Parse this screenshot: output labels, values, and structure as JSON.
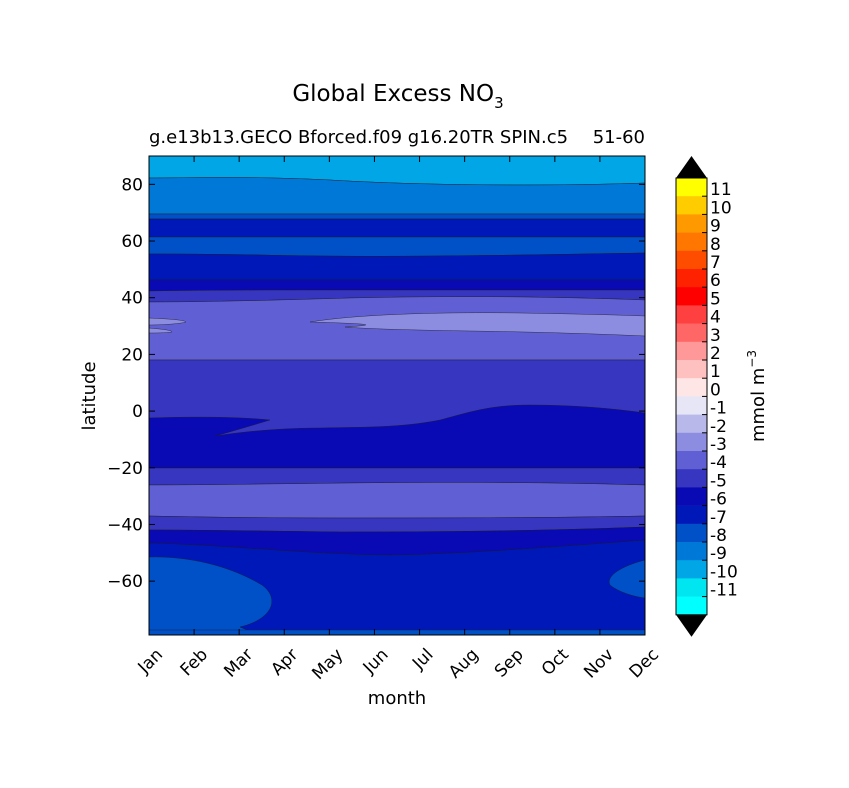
{
  "chart_data": {
    "type": "heatmap",
    "title": "Global Excess NO",
    "title_subscript": "3",
    "subtitle_left": "g.e13b13.GECO Bforced.f09 g16.20TR SPIN.c5",
    "subtitle_right": "51-60",
    "xlabel": "month",
    "ylabel": "latitude",
    "x_ticks": [
      "Jan",
      "Feb",
      "Mar",
      "Apr",
      "May",
      "Jun",
      "Jul",
      "Aug",
      "Sep",
      "Oct",
      "Nov",
      "Dec"
    ],
    "xlim": [
      0,
      11
    ],
    "ylim": [
      -79,
      90
    ],
    "y_ticks": [
      -60,
      -40,
      -20,
      0,
      20,
      40,
      60,
      80
    ],
    "y_tick_labels": [
      "−60",
      "−40",
      "−20",
      "0",
      "20",
      "40",
      "60",
      "80"
    ],
    "colorbar": {
      "label": "mmol m",
      "label_sup": "−3",
      "levels": [
        -11,
        -10,
        -9,
        -8,
        -7,
        -6,
        -5,
        -4,
        -3,
        -2,
        -1,
        0,
        1,
        2,
        3,
        4,
        5,
        6,
        7,
        8,
        9,
        10,
        11
      ],
      "tick_labels": [
        "11",
        "10",
        "9",
        "8",
        "7",
        "6",
        "5",
        "4",
        "3",
        "2",
        "1",
        "0",
        "-1",
        "-2",
        "-3",
        "-4",
        "-5",
        "-6",
        "-7",
        "-8",
        "-9",
        "-10",
        "-11"
      ],
      "colors_top_to_bottom": [
        "#ffff00",
        "#ffcc00",
        "#ff9900",
        "#ff7700",
        "#ff4d00",
        "#ff2200",
        "#ff0000",
        "#ff4040",
        "#ff6666",
        "#ff9999",
        "#ffc0c0",
        "#ffe6e6",
        "#e6e6f6",
        "#b8b8ea",
        "#8c8ce0",
        "#6060d4",
        "#3636c0",
        "#0a0ab4",
        "#0018b8",
        "#0050c8",
        "#0078d8",
        "#00a6e6",
        "#00e6f0",
        "#00ffff"
      ],
      "extend_top_color": "#000000",
      "extend_bottom_color": "#000000"
    },
    "bands": [
      {
        "lat_range": [
          82,
          90
        ],
        "value": -10,
        "color": "#00a6e6"
      },
      {
        "lat_range": [
          70,
          82
        ],
        "value": -9,
        "color": "#0078d8"
      },
      {
        "lat_range": [
          68,
          70
        ],
        "value": -8,
        "color": "#0050c8"
      },
      {
        "lat_range": [
          62,
          68
        ],
        "value": -7,
        "color": "#0018b8"
      },
      {
        "lat_range": [
          55,
          62
        ],
        "value": -8,
        "color": "#0050c8"
      },
      {
        "lat_range": [
          46,
          55
        ],
        "value": -7,
        "color": "#0018b8"
      },
      {
        "lat_range": [
          42,
          46
        ],
        "value": -6,
        "color": "#0a0ab4"
      },
      {
        "lat_range": [
          38,
          42
        ],
        "value": -5,
        "color": "#3636c0"
      },
      {
        "lat_range": [
          19,
          38
        ],
        "value": -4,
        "color": "#6060d4"
      },
      {
        "lat_range": [
          24,
          33
        ],
        "value": -3,
        "color": "#8c8ce0"
      },
      {
        "lat_range": [
          -20,
          19
        ],
        "value": -5,
        "color": "#3636c0"
      },
      {
        "lat_range": [
          -14,
          -3
        ],
        "value": -6,
        "color": "#0a0ab4"
      },
      {
        "lat_range": [
          -20,
          -14
        ],
        "value": -6,
        "color": "#0a0ab4"
      },
      {
        "lat_range": [
          -25,
          -20
        ],
        "value": -5,
        "color": "#3636c0"
      },
      {
        "lat_range": [
          -38,
          -25
        ],
        "value": -4,
        "color": "#6060d4"
      },
      {
        "lat_range": [
          -42,
          -38
        ],
        "value": -5,
        "color": "#3636c0"
      },
      {
        "lat_range": [
          -47,
          -42
        ],
        "value": -6,
        "color": "#0a0ab4"
      },
      {
        "lat_range": [
          -79,
          -47
        ],
        "value": -7,
        "color": "#0018b8"
      },
      {
        "lat_range": [
          -79,
          -52
        ],
        "value": -8,
        "color": "#0050c8"
      }
    ]
  }
}
